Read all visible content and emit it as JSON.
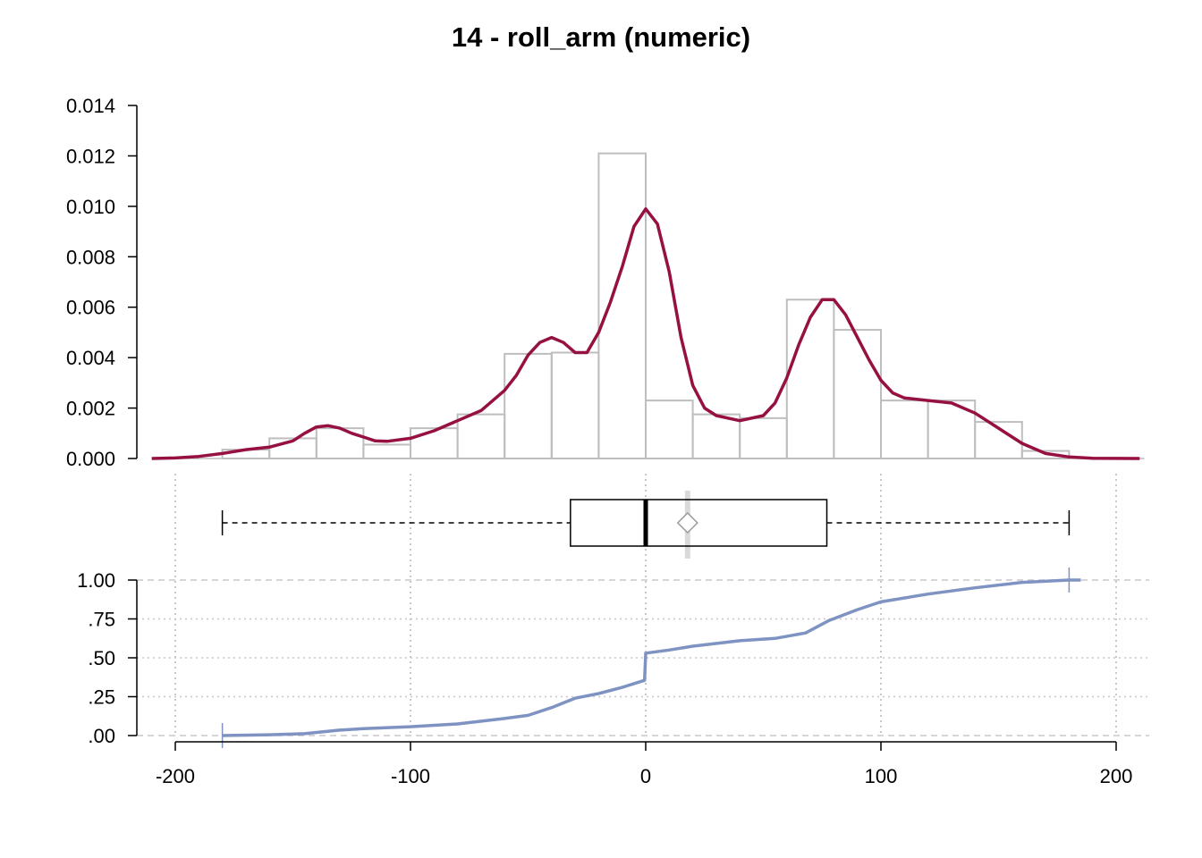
{
  "chart_data": {
    "type": "histogram+boxplot+ecdf",
    "title": "14 - roll_arm (numeric)",
    "x_ticks": [
      -200,
      -100,
      0,
      100,
      200
    ],
    "xlim": [
      -210,
      212
    ],
    "colors": {
      "histogram_outline": "#bebebe",
      "density": "#961042",
      "ecdf": "#7f93c2",
      "grid": "#c8c8c8",
      "box": "#000000",
      "mean_marker": "#9a9a9a"
    },
    "histogram": {
      "ylim": [
        0,
        0.014
      ],
      "y_ticks": [
        {
          "v": 0.0,
          "label": "0.000"
        },
        {
          "v": 0.002,
          "label": "0.002"
        },
        {
          "v": 0.004,
          "label": "0.004"
        },
        {
          "v": 0.006,
          "label": "0.006"
        },
        {
          "v": 0.008,
          "label": "0.008"
        },
        {
          "v": 0.01,
          "label": "0.010"
        },
        {
          "v": 0.012,
          "label": "0.012"
        },
        {
          "v": 0.014,
          "label": "0.014"
        }
      ],
      "bins": [
        {
          "x0": -180,
          "x1": -160,
          "density": 0.00035
        },
        {
          "x0": -160,
          "x1": -140,
          "density": 0.0008
        },
        {
          "x0": -140,
          "x1": -120,
          "density": 0.0012
        },
        {
          "x0": -120,
          "x1": -100,
          "density": 0.00055
        },
        {
          "x0": -100,
          "x1": -80,
          "density": 0.0012
        },
        {
          "x0": -80,
          "x1": -60,
          "density": 0.00175
        },
        {
          "x0": -60,
          "x1": -40,
          "density": 0.00415
        },
        {
          "x0": -40,
          "x1": -20,
          "density": 0.0042
        },
        {
          "x0": -20,
          "x1": 0,
          "density": 0.0121
        },
        {
          "x0": 0,
          "x1": 20,
          "density": 0.0023
        },
        {
          "x0": 20,
          "x1": 40,
          "density": 0.00175
        },
        {
          "x0": 40,
          "x1": 60,
          "density": 0.0016
        },
        {
          "x0": 60,
          "x1": 80,
          "density": 0.0063
        },
        {
          "x0": 80,
          "x1": 100,
          "density": 0.0051
        },
        {
          "x0": 100,
          "x1": 120,
          "density": 0.0023
        },
        {
          "x0": 120,
          "x1": 140,
          "density": 0.0023
        },
        {
          "x0": 140,
          "x1": 160,
          "density": 0.00145
        },
        {
          "x0": 160,
          "x1": 180,
          "density": 0.0003
        }
      ],
      "density_curve": [
        [
          -210,
          0.0
        ],
        [
          -200,
          2e-05
        ],
        [
          -190,
          8e-05
        ],
        [
          -180,
          0.0002
        ],
        [
          -170,
          0.00035
        ],
        [
          -160,
          0.00045
        ],
        [
          -150,
          0.0007
        ],
        [
          -145,
          0.001
        ],
        [
          -140,
          0.00125
        ],
        [
          -135,
          0.0013
        ],
        [
          -130,
          0.0012
        ],
        [
          -125,
          0.001
        ],
        [
          -120,
          0.00085
        ],
        [
          -115,
          0.0007
        ],
        [
          -110,
          0.00068
        ],
        [
          -100,
          0.0008
        ],
        [
          -90,
          0.0011
        ],
        [
          -80,
          0.0015
        ],
        [
          -70,
          0.0019
        ],
        [
          -60,
          0.0027
        ],
        [
          -55,
          0.0033
        ],
        [
          -50,
          0.0041
        ],
        [
          -45,
          0.0046
        ],
        [
          -40,
          0.0048
        ],
        [
          -35,
          0.0046
        ],
        [
          -30,
          0.0042
        ],
        [
          -25,
          0.0042
        ],
        [
          -20,
          0.005
        ],
        [
          -15,
          0.0062
        ],
        [
          -10,
          0.0076
        ],
        [
          -5,
          0.0092
        ],
        [
          0,
          0.0099
        ],
        [
          5,
          0.0093
        ],
        [
          10,
          0.0074
        ],
        [
          15,
          0.0048
        ],
        [
          20,
          0.0029
        ],
        [
          25,
          0.002
        ],
        [
          30,
          0.0017
        ],
        [
          40,
          0.0015
        ],
        [
          50,
          0.0017
        ],
        [
          55,
          0.0022
        ],
        [
          60,
          0.0032
        ],
        [
          65,
          0.0045
        ],
        [
          70,
          0.0056
        ],
        [
          75,
          0.0063
        ],
        [
          80,
          0.0063
        ],
        [
          85,
          0.0057
        ],
        [
          90,
          0.0048
        ],
        [
          95,
          0.0039
        ],
        [
          100,
          0.0031
        ],
        [
          105,
          0.0026
        ],
        [
          110,
          0.0024
        ],
        [
          120,
          0.0023
        ],
        [
          130,
          0.0022
        ],
        [
          140,
          0.0018
        ],
        [
          150,
          0.0012
        ],
        [
          160,
          0.0006
        ],
        [
          170,
          0.0002
        ],
        [
          180,
          6e-05
        ],
        [
          190,
          1e-05
        ],
        [
          210,
          0.0
        ]
      ]
    },
    "boxplot": {
      "whisker_low": -180,
      "q1": -32,
      "median": 0,
      "q3": 77,
      "whisker_high": 180,
      "mean": 17.8
    },
    "ecdf": {
      "ylim": [
        0,
        1
      ],
      "y_ticks": [
        {
          "v": 0.0,
          "label": ".00"
        },
        {
          "v": 0.25,
          "label": ".25"
        },
        {
          "v": 0.5,
          "label": ".50"
        },
        {
          "v": 0.75,
          "label": ".75"
        },
        {
          "v": 1.0,
          "label": "1.00"
        }
      ],
      "points": [
        [
          -180,
          0.0
        ],
        [
          -160,
          0.005
        ],
        [
          -145,
          0.012
        ],
        [
          -130,
          0.035
        ],
        [
          -120,
          0.045
        ],
        [
          -100,
          0.057
        ],
        [
          -80,
          0.075
        ],
        [
          -60,
          0.11
        ],
        [
          -50,
          0.13
        ],
        [
          -40,
          0.18
        ],
        [
          -30,
          0.24
        ],
        [
          -20,
          0.27
        ],
        [
          -10,
          0.31
        ],
        [
          -0.5,
          0.355
        ],
        [
          0,
          0.53
        ],
        [
          10,
          0.55
        ],
        [
          20,
          0.575
        ],
        [
          40,
          0.61
        ],
        [
          55,
          0.625
        ],
        [
          68,
          0.66
        ],
        [
          78,
          0.74
        ],
        [
          90,
          0.81
        ],
        [
          100,
          0.86
        ],
        [
          120,
          0.91
        ],
        [
          140,
          0.95
        ],
        [
          160,
          0.985
        ],
        [
          180,
          1.0
        ],
        [
          185,
          1.0
        ]
      ]
    }
  }
}
